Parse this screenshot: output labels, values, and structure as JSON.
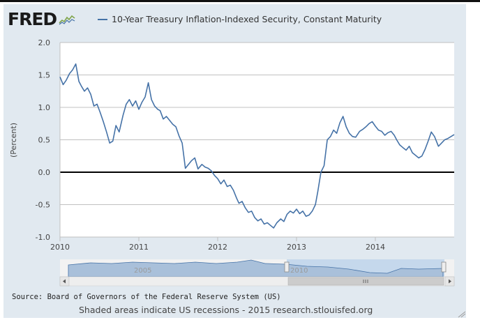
{
  "logo": {
    "text": "FRED",
    "spark_icon": "sparkline-chart-icon"
  },
  "legend": {
    "label": "10-Year Treasury Inflation-Indexed Security, Constant Maturity",
    "color": "#4572a7"
  },
  "source_text": "Source: Board of Governors of the Federal Reserve System (US)",
  "footer_text": "Shaded areas indicate US recessions - 2015 research.stlouisfed.org",
  "navigator": {
    "label_2005": "2005",
    "label_2010": "2010",
    "scroll_left_icon": "arrow-left-icon",
    "scroll_right_icon": "arrow-right-icon",
    "grip_icon": "grip-icon",
    "selected_range": [
      "2010-01",
      "2014-12"
    ]
  },
  "chart_data": {
    "type": "line",
    "ylabel": "(Percent)",
    "xlabel": "",
    "title": "",
    "x_range": [
      2010.0,
      2015.0
    ],
    "ylim": [
      -1.0,
      2.0
    ],
    "yticks": [
      "2.0",
      "1.5",
      "1.0",
      "0.5",
      "0.0",
      "-0.5",
      "-1.0"
    ],
    "ytick_values": [
      2.0,
      1.5,
      1.0,
      0.5,
      0.0,
      -0.5,
      -1.0
    ],
    "xticks": [
      "2010",
      "2011",
      "2012",
      "2013",
      "2014"
    ],
    "xtick_values": [
      2010,
      2011,
      2012,
      2013,
      2014
    ],
    "grid": true,
    "legend_position": "top",
    "zero_line": true,
    "series": [
      {
        "name": "10-Year Treasury Inflation-Indexed Security, Constant Maturity",
        "color": "#4572a7",
        "x": [
          2010.0,
          2010.04,
          2010.08,
          2010.12,
          2010.16,
          2010.2,
          2010.24,
          2010.27,
          2010.31,
          2010.35,
          2010.39,
          2010.43,
          2010.47,
          2010.51,
          2010.55,
          2010.59,
          2010.63,
          2010.67,
          2010.71,
          2010.75,
          2010.8,
          2010.84,
          2010.88,
          2010.92,
          2010.96,
          2011.0,
          2011.04,
          2011.08,
          2011.12,
          2011.16,
          2011.2,
          2011.24,
          2011.27,
          2011.31,
          2011.35,
          2011.39,
          2011.43,
          2011.47,
          2011.51,
          2011.55,
          2011.59,
          2011.63,
          2011.67,
          2011.71,
          2011.75,
          2011.8,
          2011.84,
          2011.88,
          2011.92,
          2011.96,
          2012.0,
          2012.04,
          2012.08,
          2012.12,
          2012.16,
          2012.2,
          2012.24,
          2012.27,
          2012.31,
          2012.35,
          2012.39,
          2012.43,
          2012.47,
          2012.51,
          2012.55,
          2012.59,
          2012.63,
          2012.67,
          2012.71,
          2012.75,
          2012.8,
          2012.84,
          2012.88,
          2012.92,
          2012.96,
          2013.0,
          2013.04,
          2013.08,
          2013.12,
          2013.16,
          2013.2,
          2013.24,
          2013.27,
          2013.31,
          2013.35,
          2013.39,
          2013.43,
          2013.47,
          2013.51,
          2013.55,
          2013.59,
          2013.63,
          2013.67,
          2013.71,
          2013.75,
          2013.8,
          2013.84,
          2013.88,
          2013.92,
          2013.96,
          2014.0,
          2014.04,
          2014.08,
          2014.12,
          2014.16,
          2014.2,
          2014.24,
          2014.27,
          2014.31,
          2014.35,
          2014.39,
          2014.43,
          2014.47,
          2014.51,
          2014.55,
          2014.59,
          2014.63,
          2014.67,
          2014.71,
          2014.75,
          2014.8,
          2014.84,
          2014.88,
          2014.92,
          2014.96,
          2015.0
        ],
        "y": [
          1.47,
          1.35,
          1.42,
          1.52,
          1.58,
          1.67,
          1.4,
          1.33,
          1.25,
          1.3,
          1.2,
          1.02,
          1.05,
          0.92,
          0.78,
          0.62,
          0.45,
          0.48,
          0.72,
          0.62,
          0.88,
          1.05,
          1.12,
          1.02,
          1.1,
          0.97,
          1.08,
          1.16,
          1.38,
          1.12,
          1.02,
          0.97,
          0.95,
          0.82,
          0.86,
          0.8,
          0.74,
          0.7,
          0.56,
          0.45,
          0.06,
          0.12,
          0.18,
          0.22,
          0.05,
          0.12,
          0.08,
          0.06,
          0.02,
          -0.05,
          -0.1,
          -0.18,
          -0.12,
          -0.22,
          -0.2,
          -0.28,
          -0.4,
          -0.48,
          -0.45,
          -0.55,
          -0.62,
          -0.6,
          -0.7,
          -0.75,
          -0.72,
          -0.8,
          -0.78,
          -0.82,
          -0.86,
          -0.78,
          -0.72,
          -0.76,
          -0.65,
          -0.6,
          -0.63,
          -0.57,
          -0.64,
          -0.6,
          -0.68,
          -0.66,
          -0.6,
          -0.5,
          -0.3,
          0.0,
          0.1,
          0.5,
          0.55,
          0.65,
          0.6,
          0.76,
          0.86,
          0.7,
          0.6,
          0.55,
          0.54,
          0.63,
          0.66,
          0.7,
          0.75,
          0.78,
          0.71,
          0.65,
          0.63,
          0.57,
          0.61,
          0.63,
          0.57,
          0.5,
          0.42,
          0.38,
          0.34,
          0.4,
          0.3,
          0.26,
          0.22,
          0.25,
          0.35,
          0.48,
          0.62,
          0.55,
          0.4,
          0.45,
          0.5,
          0.52,
          0.55,
          0.58
        ]
      }
    ]
  }
}
